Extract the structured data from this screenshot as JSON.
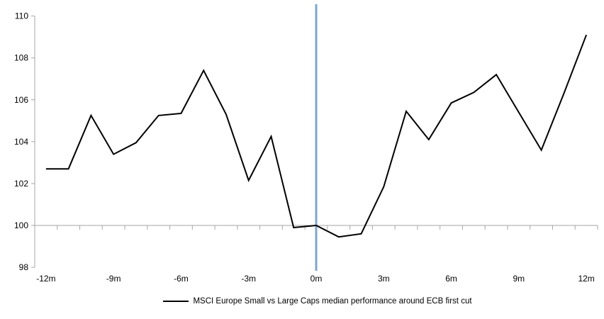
{
  "chart_data": {
    "type": "line",
    "title": "",
    "xlabel": "",
    "ylabel": "",
    "x_months": [
      -12,
      -11,
      -10,
      -9,
      -8,
      -7,
      -6,
      -5,
      -4,
      -3,
      -2,
      -1,
      0,
      1,
      2,
      3,
      4,
      5,
      6,
      7,
      8,
      9,
      10,
      11,
      12
    ],
    "series": [
      {
        "name": "MSCI Europe Small vs Large Caps median performance around ECB first cut",
        "color": "#000000",
        "values": [
          102.7,
          102.7,
          105.25,
          103.4,
          103.95,
          105.25,
          105.35,
          107.4,
          105.3,
          102.15,
          104.25,
          99.9,
          100.0,
          99.45,
          99.6,
          101.85,
          105.45,
          104.1,
          105.85,
          106.35,
          107.2,
          105.4,
          103.6,
          106.3,
          109.1
        ]
      }
    ],
    "ylim": [
      98,
      110
    ],
    "xlim": [
      -12.5,
      12.5
    ],
    "yticks": [
      98,
      100,
      102,
      104,
      106,
      108,
      110
    ],
    "ytick_labels": [
      "98",
      "100",
      "102",
      "104",
      "106",
      "108",
      "110"
    ],
    "xticks_labeled": [
      {
        "month": -12,
        "label": "-12m"
      },
      {
        "month": -9,
        "label": "-9m"
      },
      {
        "month": -6,
        "label": "-6m"
      },
      {
        "month": -3,
        "label": "-3m"
      },
      {
        "month": 0,
        "label": "0m"
      },
      {
        "month": 3,
        "label": "3m"
      },
      {
        "month": 6,
        "label": "6m"
      },
      {
        "month": 9,
        "label": "9m"
      },
      {
        "month": 12,
        "label": "12m"
      }
    ],
    "x_minor_ticks_between_categories": true,
    "x_axis_crosses_at": 100,
    "grid": false,
    "event_line": {
      "month": 0,
      "color": "#7EA6D0"
    },
    "axis_color": "#A6A6A6",
    "legend_position": "bottom-center"
  },
  "legend": {
    "swatch_color": "#000000"
  }
}
